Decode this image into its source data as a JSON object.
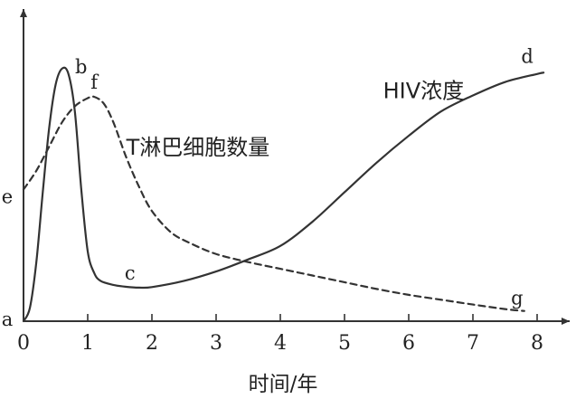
{
  "chart_data": {
    "type": "line",
    "xlabel": "时间/年",
    "ylabel": "",
    "xlim": [
      0,
      8.3
    ],
    "ylim": [
      0,
      10
    ],
    "x_ticks": [
      "0",
      "1",
      "2",
      "3",
      "4",
      "5",
      "6",
      "7",
      "8"
    ],
    "grid": false,
    "series": [
      {
        "name": "HIV浓度",
        "style": "solid",
        "color": "#333333",
        "points": [
          [
            0,
            0
          ],
          [
            0.1,
            0.5
          ],
          [
            0.2,
            2.2
          ],
          [
            0.3,
            4.8
          ],
          [
            0.4,
            7.2
          ],
          [
            0.5,
            8.8
          ],
          [
            0.6,
            9.4
          ],
          [
            0.7,
            9.2
          ],
          [
            0.8,
            7.8
          ],
          [
            0.9,
            4.9
          ],
          [
            1.0,
            2.6
          ],
          [
            1.1,
            1.8
          ],
          [
            1.2,
            1.5
          ],
          [
            1.4,
            1.35
          ],
          [
            1.6,
            1.28
          ],
          [
            1.8,
            1.25
          ],
          [
            2.0,
            1.27
          ],
          [
            2.5,
            1.5
          ],
          [
            3.0,
            1.85
          ],
          [
            3.5,
            2.3
          ],
          [
            4.0,
            2.8
          ],
          [
            4.5,
            3.7
          ],
          [
            5.0,
            4.8
          ],
          [
            5.5,
            5.9
          ],
          [
            6.0,
            6.9
          ],
          [
            6.5,
            7.8
          ],
          [
            7.0,
            8.4
          ],
          [
            7.5,
            8.9
          ],
          [
            8.0,
            9.2
          ],
          [
            8.1,
            9.25
          ]
        ]
      },
      {
        "name": "T淋巴细胞数量",
        "style": "dashed",
        "color": "#333333",
        "points": [
          [
            0,
            4.9
          ],
          [
            0.2,
            5.6
          ],
          [
            0.4,
            6.5
          ],
          [
            0.6,
            7.4
          ],
          [
            0.8,
            8.0
          ],
          [
            1.0,
            8.3
          ],
          [
            1.1,
            8.35
          ],
          [
            1.25,
            8.1
          ],
          [
            1.4,
            7.4
          ],
          [
            1.6,
            6.1
          ],
          [
            1.8,
            5.0
          ],
          [
            2.0,
            4.1
          ],
          [
            2.3,
            3.3
          ],
          [
            2.6,
            2.9
          ],
          [
            3.0,
            2.5
          ],
          [
            3.5,
            2.2
          ],
          [
            4.0,
            1.95
          ],
          [
            4.5,
            1.7
          ],
          [
            5.0,
            1.45
          ],
          [
            5.5,
            1.2
          ],
          [
            6.0,
            0.98
          ],
          [
            6.5,
            0.8
          ],
          [
            7.0,
            0.62
          ],
          [
            7.5,
            0.45
          ],
          [
            7.8,
            0.38
          ]
        ]
      }
    ],
    "point_labels": [
      {
        "text": "a",
        "x": 0,
        "y": 0,
        "dx": -18,
        "dy": -2
      },
      {
        "text": "b",
        "x": 0.7,
        "y": 9.4,
        "dx": 14,
        "dy": -2
      },
      {
        "text": "f",
        "x": 1.1,
        "y": 8.35,
        "dx": 0,
        "dy": -16
      },
      {
        "text": "e",
        "x": 0,
        "y": 4.9,
        "dx": -18,
        "dy": 8
      },
      {
        "text": "c",
        "x": 1.8,
        "y": 1.25,
        "dx": -10,
        "dy": -16
      },
      {
        "text": "d",
        "x": 8.1,
        "y": 9.25,
        "dx": -18,
        "dy": -18
      },
      {
        "text": "g",
        "x": 7.8,
        "y": 0.38,
        "dx": -8,
        "dy": -14
      }
    ],
    "series_labels": [
      {
        "text": "HIV浓度",
        "x": 5.6,
        "y": 8.3
      },
      {
        "text": "T淋巴细胞数量",
        "x": 1.6,
        "y": 6.2
      }
    ]
  }
}
